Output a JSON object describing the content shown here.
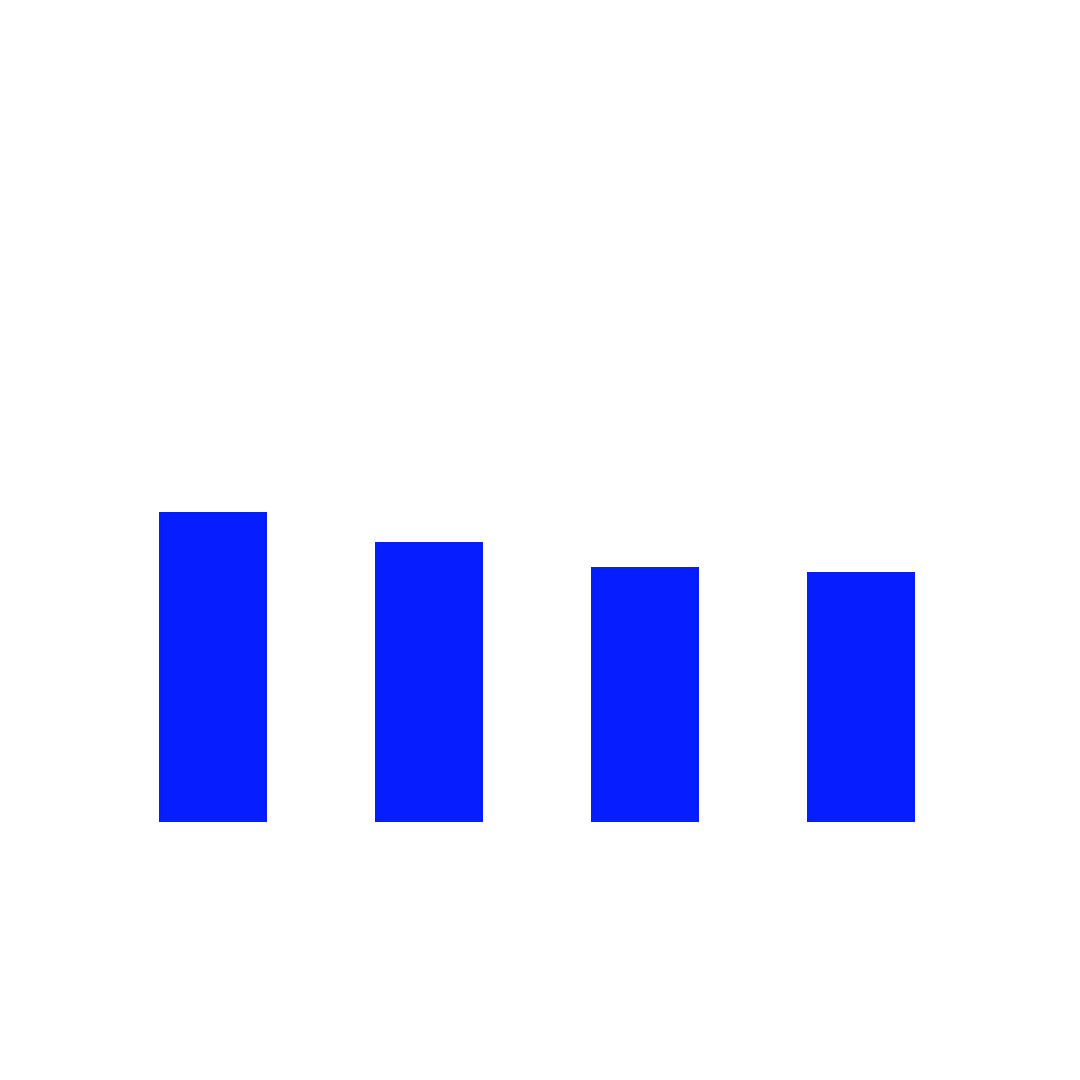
{
  "chart_data": {
    "type": "bar",
    "categories": [
      "",
      "",
      "",
      ""
    ],
    "values": [
      310,
      280,
      255,
      250
    ],
    "ylim": [
      0,
      800
    ],
    "bar_color": "#061EFF",
    "background_color": "#FFFFFF",
    "grid": false,
    "axes_visible": false,
    "legend": "none"
  }
}
